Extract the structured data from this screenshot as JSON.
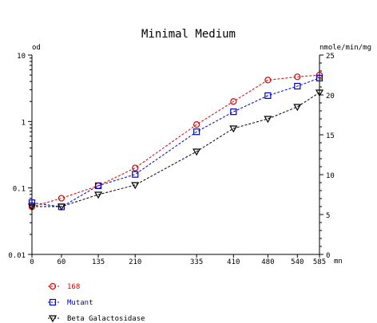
{
  "chart_data": {
    "type": "line",
    "title": "Minimal Medium",
    "y_left_label": "od",
    "y_right_label": "nmole/min/mg",
    "x_unit_label": "mn",
    "x_ticks": [
      0,
      60,
      135,
      210,
      335,
      410,
      480,
      540,
      585
    ],
    "y_left_scale": "log",
    "y_left_range": [
      0.01,
      10
    ],
    "y_left_ticks": [
      "10",
      "1",
      "0.1",
      "0.01"
    ],
    "y_right_range": [
      0,
      25
    ],
    "y_right_ticks": [
      "25",
      "20",
      "15",
      "10",
      "5",
      "0"
    ],
    "grid": false,
    "legend_position": "bottom-left",
    "series": [
      {
        "name": "168",
        "axis": "left",
        "color": "#dd0000",
        "marker": "circle",
        "x": [
          0,
          60,
          135,
          210,
          335,
          410,
          480,
          540,
          585
        ],
        "y": [
          0.052,
          0.07,
          0.108,
          0.2,
          0.9,
          2.0,
          4.2,
          4.7,
          5.0
        ]
      },
      {
        "name": "Mutant",
        "axis": "left",
        "color": "#0000cc",
        "marker": "square",
        "x": [
          0,
          60,
          135,
          210,
          335,
          410,
          480,
          540,
          585
        ],
        "y": [
          0.06,
          0.052,
          0.108,
          0.16,
          0.7,
          1.4,
          2.45,
          3.4,
          4.5
        ]
      },
      {
        "name": "Beta Galactosidase",
        "axis": "right",
        "color": "#000000",
        "marker": "triangle-down",
        "x": [
          0,
          60,
          135,
          210,
          335,
          410,
          480,
          540,
          585
        ],
        "y": [
          6.0,
          6.0,
          7.5,
          8.7,
          12.9,
          15.8,
          17.0,
          18.5,
          20.3
        ]
      }
    ]
  }
}
